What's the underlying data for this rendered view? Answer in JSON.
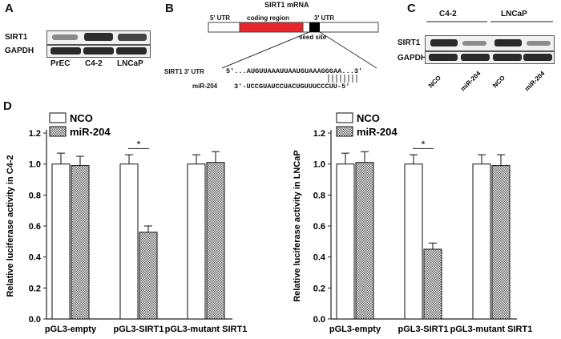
{
  "panels": {
    "a": {
      "letter": "A",
      "protein_labels": [
        "SIRT1",
        "GAPDH"
      ],
      "cell_lines": [
        "PrEC",
        "C4-2",
        "LNCaP"
      ]
    },
    "b": {
      "letter": "B",
      "mrna_title": "SIRT1 mRNA",
      "utr5": "5' UTR",
      "coding": "coding region",
      "utr3": "3' UTR",
      "seed": "seed site",
      "sirt1_label": "SIRT1 3' UTR",
      "sirt1_seq": "5'...AUGUUAAAUUAAUGUAAAGGGAA...3'",
      "mir_label": "miR-204",
      "mir_seq": "3'-UCCGUAUCCUACUGUUUCCCUU-5'"
    },
    "c": {
      "letter": "C",
      "protein_labels": [
        "SIRT1",
        "GAPDH"
      ],
      "groups": [
        "C4-2",
        "LNCaP"
      ],
      "lanes": [
        "NCO",
        "miR-204",
        "NCO",
        "miR-204"
      ]
    },
    "d": {
      "letter": "D"
    }
  },
  "colors": {
    "nco_fill": "#ffffff",
    "mir_fill": "hatched-gray",
    "red": "#e8262a"
  },
  "chart_data": [
    {
      "type": "bar",
      "categories": [
        "pGL3-empty",
        "pGL3-SIRT1",
        "pGL3-mutant SIRT1"
      ],
      "series": [
        {
          "name": "NCO",
          "values": [
            1.0,
            1.0,
            1.0
          ],
          "errors": [
            0.07,
            0.06,
            0.06
          ]
        },
        {
          "name": "miR-204",
          "values": [
            0.99,
            0.56,
            1.01
          ],
          "errors": [
            0.06,
            0.04,
            0.07
          ]
        }
      ],
      "ylabel": "Relative luciferase activity in C4-2",
      "ylim": [
        0,
        1.2
      ],
      "yticks": [
        "0.0",
        "0.2",
        "0.4",
        "0.6",
        "0.8",
        "1.0",
        "1.2"
      ],
      "significance": [
        {
          "category": "pGL3-SIRT1",
          "label": "*"
        }
      ],
      "legend": "top-left"
    },
    {
      "type": "bar",
      "categories": [
        "pGL3-empty",
        "pGL3-SIRT1",
        "pGL3-mutant SIRT1"
      ],
      "series": [
        {
          "name": "NCO",
          "values": [
            1.0,
            1.0,
            1.0
          ],
          "errors": [
            0.07,
            0.06,
            0.06
          ]
        },
        {
          "name": "miR-204",
          "values": [
            1.01,
            0.45,
            0.99
          ],
          "errors": [
            0.07,
            0.04,
            0.07
          ]
        }
      ],
      "ylabel": "Relative luciferase activity in LNCaP",
      "ylim": [
        0,
        1.2
      ],
      "yticks": [
        "0.0",
        "0.2",
        "0.4",
        "0.6",
        "0.8",
        "1.0",
        "1.2"
      ],
      "significance": [
        {
          "category": "pGL3-SIRT1",
          "label": "*"
        }
      ],
      "legend": "top-left"
    }
  ]
}
